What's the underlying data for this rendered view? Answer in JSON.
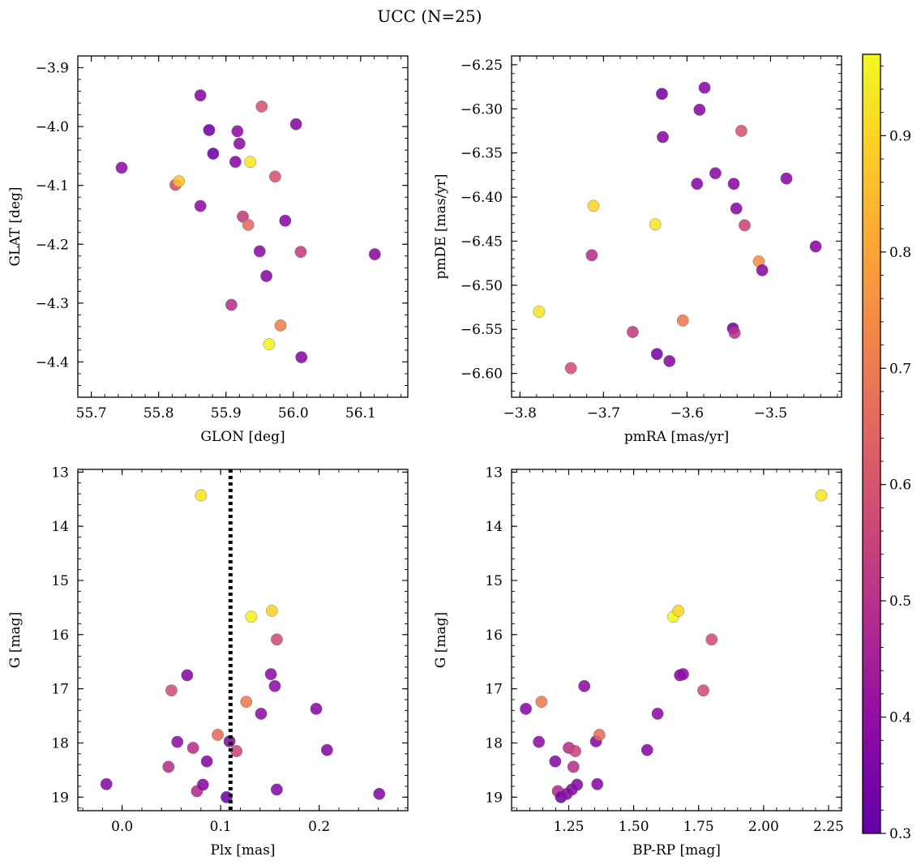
{
  "figure": {
    "title": "UCC (N=25)"
  },
  "colorbar": {
    "vmin": 0.3,
    "vmax": 0.97,
    "colormap": "plasma",
    "ticks": [
      0.3,
      0.4,
      0.5,
      0.6,
      0.7,
      0.8,
      0.9
    ],
    "tick_labels": [
      "0.3",
      "0.4",
      "0.5",
      "0.6",
      "0.7",
      "0.8",
      "0.9"
    ]
  },
  "chart_data": [
    {
      "type": "scatter",
      "xlabel": "GLON [deg]",
      "ylabel": "GLAT [deg]",
      "xlim": [
        55.68,
        56.17
      ],
      "ylim": [
        -4.46,
        -3.88
      ],
      "xticks": [
        55.7,
        55.8,
        55.9,
        56.0,
        56.1
      ],
      "xtick_labels": [
        "55.7",
        "55.8",
        "55.9",
        "56.0",
        "56.1"
      ],
      "yticks": [
        -3.9,
        -4.0,
        -4.1,
        -4.2,
        -4.3,
        -4.4
      ],
      "ytick_labels": [
        "−3.9",
        "−4.0",
        "−4.1",
        "−4.2",
        "−4.3",
        "−4.4"
      ],
      "points": [
        {
          "x": 55.745,
          "y": -4.07,
          "c": 0.4
        },
        {
          "x": 55.825,
          "y": -4.099,
          "c": 0.58
        },
        {
          "x": 55.83,
          "y": -4.093,
          "c": 0.86
        },
        {
          "x": 55.862,
          "y": -3.947,
          "c": 0.38
        },
        {
          "x": 55.862,
          "y": -4.135,
          "c": 0.4
        },
        {
          "x": 55.875,
          "y": -4.006,
          "c": 0.33
        },
        {
          "x": 55.881,
          "y": -4.046,
          "c": 0.33
        },
        {
          "x": 55.914,
          "y": -4.06,
          "c": 0.38
        },
        {
          "x": 55.917,
          "y": -4.008,
          "c": 0.4
        },
        {
          "x": 55.92,
          "y": -4.029,
          "c": 0.4
        },
        {
          "x": 55.925,
          "y": -4.153,
          "c": 0.53
        },
        {
          "x": 55.933,
          "y": -4.167,
          "c": 0.66
        },
        {
          "x": 55.936,
          "y": -4.06,
          "c": 0.93
        },
        {
          "x": 55.908,
          "y": -4.303,
          "c": 0.5
        },
        {
          "x": 55.95,
          "y": -4.212,
          "c": 0.4
        },
        {
          "x": 55.953,
          "y": -3.966,
          "c": 0.6
        },
        {
          "x": 55.96,
          "y": -4.254,
          "c": 0.38
        },
        {
          "x": 55.964,
          "y": -4.37,
          "c": 0.96
        },
        {
          "x": 55.973,
          "y": -4.085,
          "c": 0.6
        },
        {
          "x": 55.981,
          "y": -4.338,
          "c": 0.71
        },
        {
          "x": 55.988,
          "y": -4.16,
          "c": 0.38
        },
        {
          "x": 56.004,
          "y": -3.996,
          "c": 0.38
        },
        {
          "x": 56.011,
          "y": -4.213,
          "c": 0.53
        },
        {
          "x": 56.012,
          "y": -4.392,
          "c": 0.38
        },
        {
          "x": 56.121,
          "y": -4.217,
          "c": 0.38
        }
      ]
    },
    {
      "type": "scatter",
      "xlabel": "pmRA [mas/yr]",
      "ylabel": "pmDE [mas/yr]",
      "xlim": [
        -3.81,
        -3.415
      ],
      "ylim": [
        -6.627,
        -6.24
      ],
      "xticks": [
        -3.8,
        -3.7,
        -3.6,
        -3.5
      ],
      "xtick_labels": [
        "−3.8",
        "−3.7",
        "−3.6",
        "−3.5"
      ],
      "yticks": [
        -6.25,
        -6.3,
        -6.35,
        -6.4,
        -6.45,
        -6.5,
        -6.55,
        -6.6
      ],
      "ytick_labels": [
        "−6.25",
        "−6.30",
        "−6.35",
        "−6.40",
        "−6.45",
        "−6.50",
        "−6.55",
        "−6.60"
      ],
      "points": [
        {
          "x": -3.777,
          "y": -6.53,
          "c": 0.93
        },
        {
          "x": -3.739,
          "y": -6.594,
          "c": 0.58
        },
        {
          "x": -3.714,
          "y": -6.466,
          "c": 0.5
        },
        {
          "x": -3.712,
          "y": -6.41,
          "c": 0.9
        },
        {
          "x": -3.665,
          "y": -6.553,
          "c": 0.53
        },
        {
          "x": -3.638,
          "y": -6.431,
          "c": 0.93
        },
        {
          "x": -3.636,
          "y": -6.578,
          "c": 0.35
        },
        {
          "x": -3.63,
          "y": -6.283,
          "c": 0.35
        },
        {
          "x": -3.629,
          "y": -6.332,
          "c": 0.38
        },
        {
          "x": -3.621,
          "y": -6.586,
          "c": 0.38
        },
        {
          "x": -3.605,
          "y": -6.54,
          "c": 0.7
        },
        {
          "x": -3.588,
          "y": -6.385,
          "c": 0.38
        },
        {
          "x": -3.585,
          "y": -6.301,
          "c": 0.38
        },
        {
          "x": -3.579,
          "y": -6.276,
          "c": 0.38
        },
        {
          "x": -3.566,
          "y": -6.373,
          "c": 0.38
        },
        {
          "x": -3.545,
          "y": -6.549,
          "c": 0.33
        },
        {
          "x": -3.544,
          "y": -6.385,
          "c": 0.38
        },
        {
          "x": -3.543,
          "y": -6.554,
          "c": 0.5
        },
        {
          "x": -3.541,
          "y": -6.413,
          "c": 0.38
        },
        {
          "x": -3.535,
          "y": -6.325,
          "c": 0.6
        },
        {
          "x": -3.531,
          "y": -6.432,
          "c": 0.55
        },
        {
          "x": -3.514,
          "y": -6.473,
          "c": 0.75
        },
        {
          "x": -3.51,
          "y": -6.483,
          "c": 0.38
        },
        {
          "x": -3.481,
          "y": -6.379,
          "c": 0.38
        },
        {
          "x": -3.446,
          "y": -6.456,
          "c": 0.38
        }
      ]
    },
    {
      "type": "scatter",
      "xlabel": "Plx [mas]",
      "ylabel": "G [mag]",
      "xlim": [
        -0.045,
        0.29
      ],
      "ylim": [
        19.25,
        12.95
      ],
      "xticks": [
        0.0,
        0.1,
        0.2
      ],
      "xtick_labels": [
        "0.0",
        "0.1",
        "0.2"
      ],
      "yticks": [
        13,
        14,
        15,
        16,
        17,
        18,
        19
      ],
      "ytick_labels": [
        "13",
        "14",
        "15",
        "16",
        "17",
        "18",
        "19"
      ],
      "vline": {
        "x": 0.11,
        "style": "dotted",
        "color": "#000000"
      },
      "points": [
        {
          "x": -0.016,
          "y": 18.76,
          "c": 0.38
        },
        {
          "x": 0.047,
          "y": 18.44,
          "c": 0.5
        },
        {
          "x": 0.05,
          "y": 17.03,
          "c": 0.58
        },
        {
          "x": 0.056,
          "y": 17.98,
          "c": 0.4
        },
        {
          "x": 0.066,
          "y": 16.75,
          "c": 0.38
        },
        {
          "x": 0.072,
          "y": 18.09,
          "c": 0.5
        },
        {
          "x": 0.076,
          "y": 18.89,
          "c": 0.48
        },
        {
          "x": 0.08,
          "y": 13.43,
          "c": 0.93
        },
        {
          "x": 0.082,
          "y": 18.77,
          "c": 0.38
        },
        {
          "x": 0.086,
          "y": 18.34,
          "c": 0.38
        },
        {
          "x": 0.097,
          "y": 17.85,
          "c": 0.66
        },
        {
          "x": 0.106,
          "y": 19.0,
          "c": 0.33
        },
        {
          "x": 0.109,
          "y": 17.97,
          "c": 0.38
        },
        {
          "x": 0.116,
          "y": 18.15,
          "c": 0.55
        },
        {
          "x": 0.126,
          "y": 17.24,
          "c": 0.7
        },
        {
          "x": 0.131,
          "y": 15.67,
          "c": 0.96
        },
        {
          "x": 0.141,
          "y": 17.46,
          "c": 0.4
        },
        {
          "x": 0.151,
          "y": 16.73,
          "c": 0.4
        },
        {
          "x": 0.152,
          "y": 15.56,
          "c": 0.9
        },
        {
          "x": 0.155,
          "y": 16.95,
          "c": 0.4
        },
        {
          "x": 0.157,
          "y": 18.86,
          "c": 0.38
        },
        {
          "x": 0.157,
          "y": 16.09,
          "c": 0.58
        },
        {
          "x": 0.197,
          "y": 17.37,
          "c": 0.38
        },
        {
          "x": 0.208,
          "y": 18.13,
          "c": 0.38
        },
        {
          "x": 0.261,
          "y": 18.94,
          "c": 0.38
        }
      ]
    },
    {
      "type": "scatter",
      "xlabel": "BP-RP [mag]",
      "ylabel": "G [mag]",
      "xlim": [
        1.03,
        2.3
      ],
      "ylim": [
        19.25,
        12.95
      ],
      "xticks": [
        1.25,
        1.5,
        1.75,
        2.0,
        2.25
      ],
      "xtick_labels": [
        "1.25",
        "1.50",
        "1.75",
        "2.00",
        "2.25"
      ],
      "yticks": [
        13,
        14,
        15,
        16,
        17,
        18,
        19
      ],
      "ytick_labels": [
        "13",
        "14",
        "15",
        "16",
        "17",
        "18",
        "19"
      ],
      "points": [
        {
          "x": 1.085,
          "y": 17.37,
          "c": 0.38
        },
        {
          "x": 1.135,
          "y": 17.98,
          "c": 0.4
        },
        {
          "x": 1.145,
          "y": 17.24,
          "c": 0.7
        },
        {
          "x": 1.198,
          "y": 18.34,
          "c": 0.38
        },
        {
          "x": 1.208,
          "y": 18.89,
          "c": 0.48
        },
        {
          "x": 1.22,
          "y": 19.0,
          "c": 0.33
        },
        {
          "x": 1.242,
          "y": 18.94,
          "c": 0.38
        },
        {
          "x": 1.25,
          "y": 18.09,
          "c": 0.5
        },
        {
          "x": 1.262,
          "y": 18.86,
          "c": 0.38
        },
        {
          "x": 1.268,
          "y": 18.44,
          "c": 0.5
        },
        {
          "x": 1.275,
          "y": 18.15,
          "c": 0.55
        },
        {
          "x": 1.282,
          "y": 18.77,
          "c": 0.38
        },
        {
          "x": 1.31,
          "y": 16.95,
          "c": 0.4
        },
        {
          "x": 1.355,
          "y": 17.97,
          "c": 0.38
        },
        {
          "x": 1.36,
          "y": 18.76,
          "c": 0.38
        },
        {
          "x": 1.368,
          "y": 17.85,
          "c": 0.66
        },
        {
          "x": 1.552,
          "y": 18.13,
          "c": 0.38
        },
        {
          "x": 1.592,
          "y": 17.46,
          "c": 0.4
        },
        {
          "x": 1.652,
          "y": 15.67,
          "c": 0.96
        },
        {
          "x": 1.672,
          "y": 15.56,
          "c": 0.9
        },
        {
          "x": 1.678,
          "y": 16.75,
          "c": 0.38
        },
        {
          "x": 1.69,
          "y": 16.73,
          "c": 0.4
        },
        {
          "x": 1.768,
          "y": 17.03,
          "c": 0.58
        },
        {
          "x": 1.8,
          "y": 16.09,
          "c": 0.58
        },
        {
          "x": 2.222,
          "y": 13.43,
          "c": 0.93
        }
      ]
    }
  ]
}
